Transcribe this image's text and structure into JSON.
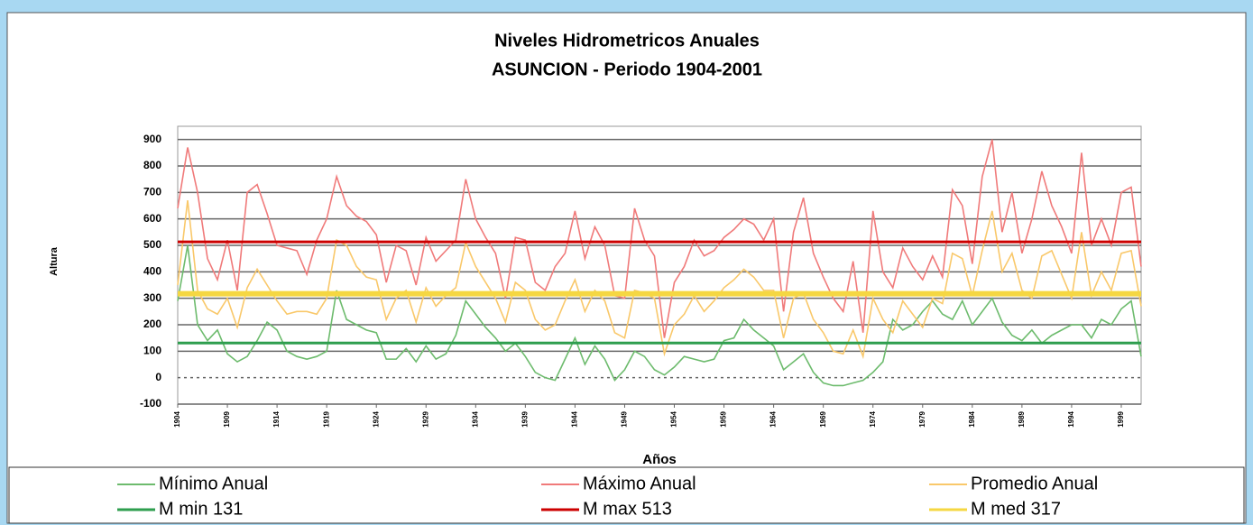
{
  "chart_data": {
    "type": "line",
    "title": "Niveles Hidrometricos Anuales",
    "subtitle": "ASUNCION - Periodo 1904-2001",
    "x_label": "Años",
    "y_label": "Altura",
    "x": [
      1904,
      1905,
      1906,
      1907,
      1908,
      1909,
      1910,
      1911,
      1912,
      1913,
      1914,
      1915,
      1916,
      1917,
      1918,
      1919,
      1920,
      1921,
      1922,
      1923,
      1924,
      1925,
      1926,
      1927,
      1928,
      1929,
      1930,
      1931,
      1932,
      1933,
      1934,
      1935,
      1936,
      1937,
      1938,
      1939,
      1940,
      1941,
      1942,
      1943,
      1944,
      1945,
      1946,
      1947,
      1948,
      1949,
      1950,
      1951,
      1952,
      1953,
      1954,
      1955,
      1956,
      1957,
      1958,
      1959,
      1960,
      1961,
      1962,
      1963,
      1964,
      1965,
      1966,
      1967,
      1968,
      1969,
      1970,
      1971,
      1972,
      1973,
      1974,
      1975,
      1976,
      1977,
      1978,
      1979,
      1980,
      1981,
      1982,
      1983,
      1984,
      1985,
      1986,
      1987,
      1988,
      1989,
      1990,
      1991,
      1992,
      1993,
      1994,
      1995,
      1996,
      1997,
      1998,
      1999,
      2000,
      2001
    ],
    "series": [
      {
        "name": "Mínimo Anual",
        "color": "#6dbb6d",
        "values": [
          290,
          500,
          200,
          140,
          180,
          90,
          60,
          80,
          140,
          210,
          180,
          100,
          80,
          70,
          80,
          100,
          330,
          220,
          200,
          180,
          170,
          70,
          70,
          110,
          60,
          120,
          70,
          90,
          160,
          290,
          240,
          190,
          150,
          100,
          130,
          80,
          20,
          0,
          -10,
          70,
          150,
          50,
          120,
          70,
          -10,
          30,
          100,
          80,
          30,
          10,
          40,
          80,
          70,
          60,
          70,
          140,
          150,
          220,
          180,
          150,
          120,
          30,
          60,
          90,
          20,
          -20,
          -30,
          -30,
          -20,
          -10,
          20,
          60,
          220,
          180,
          200,
          250,
          290,
          240,
          220,
          290,
          200,
          250,
          300,
          210,
          160,
          140,
          180,
          130,
          160,
          180,
          200,
          200,
          150,
          220,
          200,
          260,
          290,
          80
        ]
      },
      {
        "name": "Máximo Anual",
        "color": "#f07a7a",
        "values": [
          640,
          870,
          700,
          450,
          370,
          520,
          330,
          700,
          730,
          620,
          500,
          490,
          480,
          390,
          520,
          600,
          760,
          650,
          610,
          590,
          540,
          360,
          500,
          480,
          350,
          530,
          440,
          480,
          520,
          750,
          600,
          530,
          470,
          300,
          530,
          520,
          360,
          330,
          420,
          470,
          630,
          450,
          570,
          500,
          310,
          300,
          640,
          520,
          460,
          150,
          360,
          420,
          520,
          460,
          480,
          530,
          560,
          600,
          580,
          520,
          600,
          250,
          550,
          680,
          470,
          380,
          300,
          250,
          440,
          170,
          630,
          400,
          340,
          490,
          420,
          370,
          460,
          380,
          710,
          650,
          430,
          760,
          900,
          550,
          700,
          470,
          600,
          780,
          650,
          570,
          470,
          850,
          500,
          600,
          500,
          700,
          720,
          420
        ]
      },
      {
        "name": "Promedio Anual",
        "color": "#f9c86a",
        "values": [
          350,
          670,
          330,
          260,
          240,
          300,
          190,
          340,
          410,
          350,
          290,
          240,
          250,
          250,
          240,
          300,
          520,
          500,
          420,
          380,
          370,
          220,
          300,
          330,
          210,
          340,
          270,
          310,
          340,
          510,
          420,
          360,
          300,
          210,
          360,
          330,
          220,
          180,
          200,
          290,
          370,
          250,
          330,
          290,
          170,
          150,
          330,
          320,
          300,
          90,
          200,
          240,
          310,
          250,
          290,
          340,
          370,
          410,
          380,
          330,
          330,
          150,
          300,
          320,
          220,
          170,
          100,
          90,
          180,
          80,
          300,
          220,
          170,
          290,
          240,
          190,
          300,
          280,
          470,
          450,
          310,
          480,
          630,
          400,
          470,
          330,
          300,
          460,
          480,
          390,
          300,
          550,
          310,
          400,
          330,
          470,
          480,
          270
        ]
      },
      {
        "name": "M min 131",
        "color": "#2e9e4e",
        "value": 131
      },
      {
        "name": "M max 513",
        "color": "#cc0000",
        "value": 513
      },
      {
        "name": "M med 317",
        "color": "#f5d742",
        "value": 317
      }
    ],
    "xlim": [
      1904,
      2001
    ],
    "xticks": [
      1904,
      1909,
      1914,
      1919,
      1924,
      1929,
      1934,
      1939,
      1944,
      1949,
      1954,
      1959,
      1964,
      1969,
      1974,
      1979,
      1984,
      1989,
      1994,
      1999
    ],
    "ylim": [
      -100,
      950
    ],
    "yticks": [
      -100,
      0,
      100,
      200,
      300,
      400,
      500,
      600,
      700,
      800,
      900
    ],
    "grid": true
  }
}
